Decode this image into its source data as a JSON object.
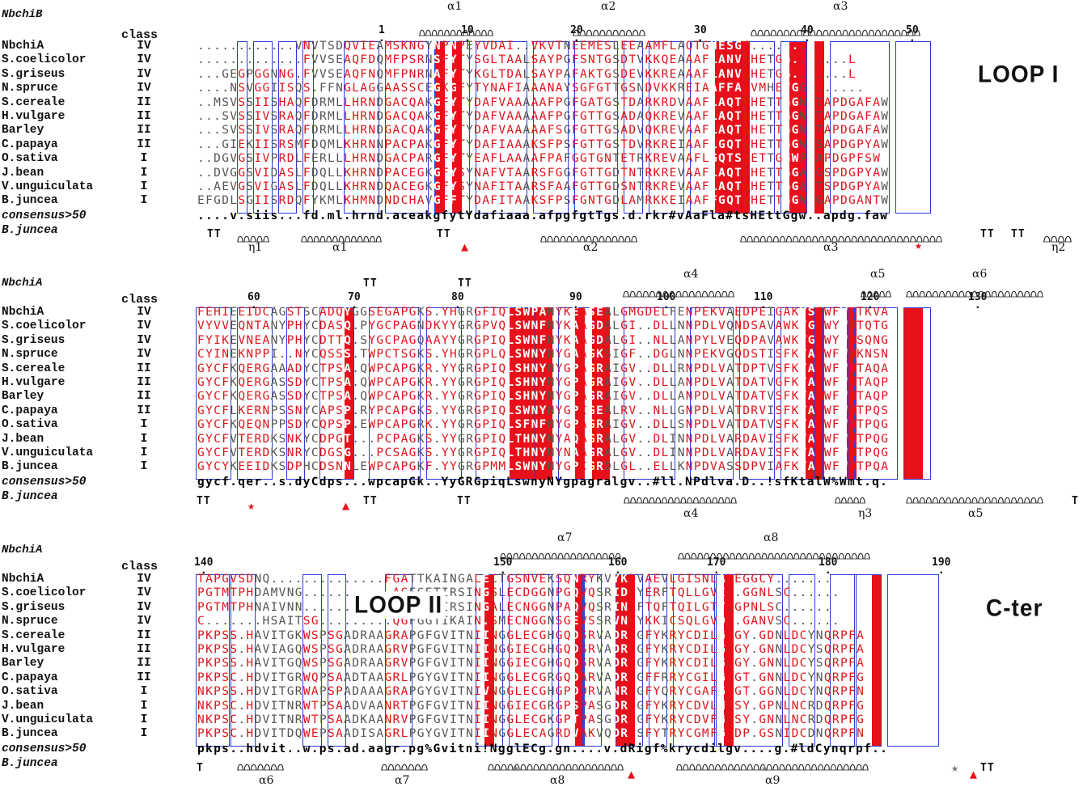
{
  "labels": {
    "top_struct": "NbchiB",
    "mid_struct": "NbchiA",
    "bottom_struct": "NbchiA",
    "class_header": "class",
    "consensus": "consensus>50",
    "bottom_ref": "B.juncea"
  },
  "species": [
    "NbchiA",
    "S.coelicolor",
    "S.griseus",
    "N.spruce",
    "S.cereale",
    "H.vulgare",
    "Barley",
    "C.papaya",
    "O.sativa",
    "J.bean",
    "V.unguiculata",
    "B.juncea"
  ],
  "classes": [
    "IV",
    "IV",
    "IV",
    "IV",
    "II",
    "II",
    "II",
    "II",
    "I",
    "I",
    "I",
    "I"
  ],
  "block1": {
    "seqs": [
      "............VNVTSDQVIEAMSKNGYNPNPEYVDAI..VKVTNEEMESLEEAAMFLAQTGHESGG.......L",
      ".............FVVSEAQFDQMFPSRNSFYTYSGLTAALSAYPGFSNTGSDTVKKQEAAAFLANVGHETGG.......L",
      "...GEGPGGNNG.FVVSEAQFNQMFPNRNAFYTYKGLTDALSAYPAFAKTGSDEVKKREAAAFLANVSHETGG.......L",
      "....NSVGGIISQS.FFNGLAGGAASSCEGKGFYTYNAFIAAANAYSGFGTTGSNDVKKREIAAFFANVMHETGG.......",
      "..MSVSSIISHAQFDRMLLHRNDGACQAKGFYTYDAFVAAAAAFPGFGATGSTDARKRDVAAFLAQTSHETTGGWATAPDGAFAW",
      "...SVSSIVSRAQFDRMLLHRNDGACQAKGFYTYDAFVAAAAAFPGFGTTGSADAQKREVAAFLAQTSHETTGGWATAPDGAFAW",
      "...SVSSIVSRAQFDRMLLHRNDGACQAKGFYTYDAFVAAAAAFSGFGTTGSADVQKREVAAFLAQTSHETTGGWATAPDGAFAW",
      "...GIEKIISRSMFDQMLKHRNNPACPAKGFYTYDAFIAAAKSFPSFGTTGSTDVRKREIAAFLGQTSHETTGGWPSAPDGPYAW",
      "..DGVGSIVPRDLFERLLLHRNDGACPARGFYTYEAFLAAAAFPAFGGTGNTETRKREVAAFLGQTSHETTGGWPTAPDGPFSW",
      "..DVGGSVIDASLFDQLLKHRNDPACEGKGFYSYNAFVTAARSFGGFGTTGDTNTRKREVAAFLAQTSHETTGGAAGSPDGPYAW",
      "..AEVGSVIGASLFDQLLKHRNDQACEGKGFYSYNAFITAARSFAAFGTTGDSNTRKREVAAFLAQTSHETTGGAATSPDGPYAW",
      "EFGDLSGIISRDQFYKMLKHMNDNDCHAVGFFTYDAFITAAKSFPSFGNTGDLAMRKKEIAAFFGQTSHETTGGWSGAPDGANTW"
    ],
    "consensus": "....v.siis...fd.ml.hrnd.aceakgfytYdafiaaa.afpgfgtTgs.d.rkr#vAaFla#tsHEttGgw..apdg.faw",
    "numbers": [
      "1",
      "10",
      "20",
      "30",
      "40",
      "50"
    ],
    "helices_top": [
      "α1",
      "α2",
      "α3"
    ],
    "helices_bottom": [
      "η1",
      "α1",
      "α2",
      "α3",
      "η2"
    ],
    "tt_bottom": [
      "TT",
      "TT",
      "TT",
      "TT"
    ],
    "loop_label": "LOOP I"
  },
  "block2": {
    "seqs": [
      "FEHIEEIDCAGSTSCADQYGGSEGAPGKS.YHGRGFIQLSWPANYKEASEALGMGDELFENPEKVAEDPEIGAKVSSWFWKTKVA",
      "VYVVEQNTANYPHYCDASQ.PYGCPAGNDKYYGRGPVQLSWNFNYKAAGDALGI..DLLNNPDLVQNDSAVAWKTGLWYWNTQTG",
      "FYIKEVNEANYPHYCDTTQ.SYGCPAGQAAYYGRGPIQLSWNFNYKAAGDALGI..NLLANPYLVEQDPAVAWKTGLWYWNSQNG",
      "CYINEKNPPI..NYCQSSS.TWPCTSGKS.YHGRGPLQLSWNYNYGAAGKSIGF..DGLNNPEKVGQDSTISFKTAVWFWMKNSN",
      "GYCFKQERGAAADYCTPSA.QWPCAPGKR.YYGRGPIQLSHNYNYGPAGRAIGV..DLLRNPDLVATDPTVSFKTALWFWMTAQA",
      "GYCFKQERGASSDYCTPSA.QWPCAPGKR.YYGRGPIQLSHNYNYGPAGRAIGV..DLLANPDLVATDATVGFKTAIWFWMTAQP",
      "GYCFKQERGASSDYCTPSA.QWPCAPGKR.YYGRGPIQLSHNYNYGPAGRAIGV..DLLANPDLVATDATVSFKTAMWFWMTAQP",
      "GYCFLKERNPSSNYCAPSP.RYPCAPGKS.YYGRGPIQLSWNYNYGPCGEALRV..NLLGNPDLVATDRVISFKTALWFWMTPQS",
      "GYCFKQEQNPPSDYCQPSP.EWPCAPGRK.YYGRGPIQLSFNFNYGPAGRAIGV..DLLSNPDLVATDATVSFKTALWFWMTPQG",
      "GYCFVTERDKSNKYCDPGT...PCPAGKS.YYGRGPIQLTHNYNYAQAGRALGV..DLINNPDLVARDAVISFKTAIWFWMTPQG",
      "GYCFVTERDKSNRYCDGSG...PCSAGKS.YYGRGPIQLTHNYNYNAAGRALGV..DLINNPDLVARDAVISFKTAIWFWMTPQG",
      "GYCYKEEIDKSDPHCDSNNLEWPCAPGKF.YYGRGPMMLSWNYNYGPCGRDLGL..ELLKNPDVASSDPVIAFKTAIWFWMTPQA"
    ],
    "consensus": "gycf.qer..s.dyCdps...wpcapGk..YyGRGpiqLswnyNYgpagralgv..#ll.NPdlva.D..!sfKtalW%Wmt.q.",
    "numbers": [
      "60",
      "70",
      "80",
      "90",
      "100",
      "110",
      "120",
      "130"
    ],
    "helices_top": [
      "α4",
      "α5",
      "α6"
    ],
    "helices_bottom": [
      "α4",
      "η3",
      "α5"
    ],
    "tt_top": [
      "TT",
      "TT"
    ],
    "tt_bottom": [
      "TT",
      "TT",
      "TT",
      "T"
    ]
  },
  "block3": {
    "seqs": [
      "TAPGVSDNQ..............FGATTKAINGALECTGSNVEKSQNRYKVYKDVAEVLGISNLADEGGCY.......",
      "PGTMTPHDAMVNG...........AGFGETIRSINGSLECDGGNPGQVQSRIDNYERFTQLLGVEP.GGNLSC......",
      "PGTMTPHNAIVNN...........AGFGETIRSINGALECNGGNPAQVQSRINKFTQFTQILGTT.GPNLSC......",
      "C.......HSAITSG.........QGFGGTIKAIN.SMECNGGNSGEVSSRVNYYKKICSQLGVDP.GANVSC......",
      "PKPSS.HAVITGKWSPSGADRAAGRAPGFGVITNIINGGLECGHGQDSRVADRIGFYKRYCDILGVGY.GDNLDCYNQRPFA.",
      "PKPSS.HAVIAGQWSPSGADRAAGRVPGFGVITNIINGGIECGHGQDSRVADRIGFYKRYCDILGVGY.GNNLDCYSQRPFA.",
      "PKPSS.HAVITGQWSPSGADRAAGRVPGFGVITNIINGGIECGHGQDSRVADRIGFYKRYCDILGVGY.GNNLDCYSQRPFA.",
      "PKPSC.HDVITGRWQPSAADTAAGRLPGYGVITNIINGGLECGRGQDARVADRIGFFRRYCGILGVGT.GNNLDCYNQRPFG.",
      "NKPSS.HDVITGRWAPSPADAAAGRAPGYGVITNIVNGGLECGHGPDDRVANRIGFYQRYCGAFGIGT.GGNLDCYNQRPFN.",
      "NKPSC.HDVITNRWTPSAADVAANRTPGFGVITNIINGGIECGRGPSPASGDRIGFYKRYCDVLHLSY.GPNLNCRDQRPFGG",
      "NKPSC.HDVITNRWTPSAADKAANRVPGFGVITNIINGGLECGKGPTPASGDRIGFYKRYCDVFGVSY.GNNLNCRDQRPFG.",
      "PKPSC.HDVITDQWEPSAADISAGRLPGYGVITNIINGGLECAGRDVAKVQDRISFYTRYCGMFGVDP.GSNIDCDNQRPFN."
    ],
    "consensus": "pkps..hdvit..w.ps.ad.aagr.pg%Gvitni!NgglECg.gn....v.dRigf%krycdilgv....g.#ldCynqrpf..",
    "numbers": [
      "140",
      "150",
      "160",
      "170",
      "180",
      "190"
    ],
    "helices_top": [
      "α7",
      "α8"
    ],
    "helices_bottom": [
      "α6",
      "α7",
      "α8",
      "α9"
    ],
    "tt_bottom": [
      "T",
      "TT"
    ],
    "loop_label": "LOOP II",
    "cter_label": "C-ter"
  },
  "colors": {
    "identity_red": "#e8101a",
    "box_blue": "#2a3bd6",
    "similar_text_red": "#e0141c"
  }
}
